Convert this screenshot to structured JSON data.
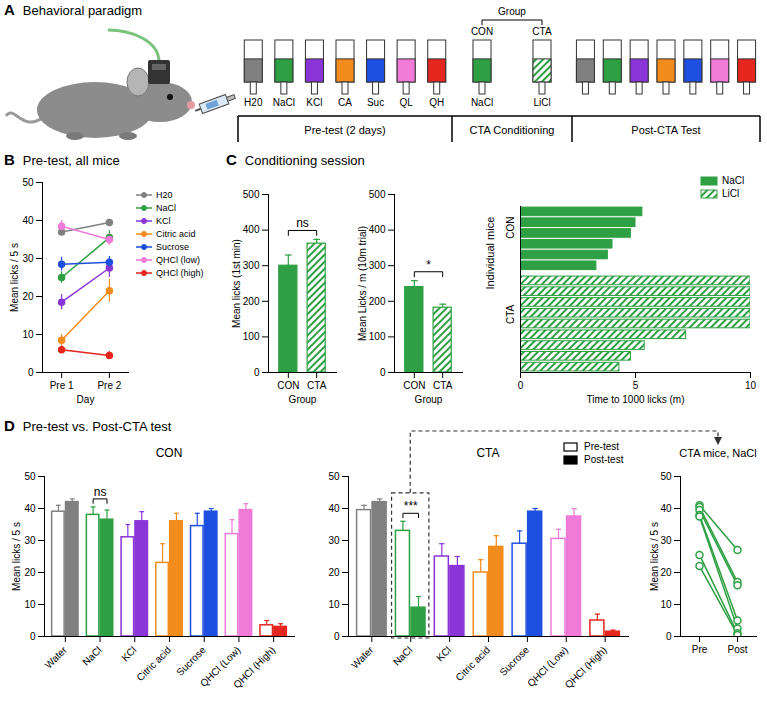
{
  "diagram": {
    "panel_label": "A",
    "title": "Behavioral paradigm",
    "group_label": "Group",
    "phases": [
      {
        "label": "Pre-test (2 days)",
        "tubes": [
          {
            "label": "H20",
            "color": "#808080"
          },
          {
            "label": "NaCl",
            "color": "#2ea043"
          },
          {
            "label": "KCl",
            "color": "#8a35d8"
          },
          {
            "label": "CA",
            "color": "#f28c1c"
          },
          {
            "label": "Suc",
            "color": "#1f4fe0"
          },
          {
            "label": "QL",
            "color": "#f07ad8"
          },
          {
            "label": "QH",
            "color": "#e5261f"
          }
        ]
      },
      {
        "label": "CTA Conditioning",
        "tubes": [
          {
            "label": "NaCl",
            "group": "CON",
            "color": "#2ea043"
          },
          {
            "label": "LiCl",
            "group": "CTA",
            "color": "#2ea043"
          }
        ]
      },
      {
        "label": "Post-CTA Test",
        "tubes": [
          {
            "color": "#808080"
          },
          {
            "color": "#2ea043"
          },
          {
            "color": "#8a35d8"
          },
          {
            "color": "#f28c1c"
          },
          {
            "color": "#1f4fe0"
          },
          {
            "color": "#f07ad8"
          },
          {
            "color": "#e5261f"
          }
        ]
      }
    ]
  },
  "chart_data": [
    {
      "type": "line",
      "panel_label": "B",
      "panel_title": "Pre-test, all mice",
      "categories": [
        "Pre 1",
        "Pre 2"
      ],
      "xlabel": "Day",
      "ylabel": "Mean licks / 5 s",
      "ylim": [
        0,
        50
      ],
      "yticks": [
        0,
        10,
        20,
        30,
        40,
        50
      ],
      "legend": "right",
      "marker": "circle",
      "series": [
        {
          "name": "H20",
          "color": "#808080",
          "values": [
            37,
            39.5
          ],
          "errors": [
            1,
            0.8
          ]
        },
        {
          "name": "NaCl",
          "color": "#2ea043",
          "values": [
            25,
            35.5
          ],
          "errors": [
            1.5,
            1.8
          ]
        },
        {
          "name": "KCl",
          "color": "#8a35d8",
          "values": [
            18.5,
            27.5
          ],
          "errors": [
            2,
            2.5
          ]
        },
        {
          "name": "Citric acid",
          "color": "#f28c1c",
          "values": [
            8.5,
            21.5
          ],
          "errors": [
            1.5,
            3
          ]
        },
        {
          "name": "Sucrose",
          "color": "#1f4fe0",
          "values": [
            28.5,
            29
          ],
          "errors": [
            1.8,
            1.5
          ]
        },
        {
          "name": "QHCl (low)",
          "color": "#f07ad8",
          "values": [
            38.5,
            35
          ],
          "errors": [
            1.5,
            1.5
          ]
        },
        {
          "name": "QHCl (high)",
          "color": "#e5261f",
          "values": [
            6,
            4.5
          ],
          "errors": [
            1,
            1
          ]
        }
      ]
    },
    {
      "type": "bar",
      "panel_label": "C",
      "panel_title": "Conditioning session",
      "categories": [
        "CON",
        "CTA"
      ],
      "values": [
        300,
        362
      ],
      "errors": [
        30,
        12
      ],
      "colors": [
        "#2ea043",
        "#2ea043"
      ],
      "xlabel": "Group",
      "ylabel": "Mean licks (1st min)",
      "ylim": [
        0,
        500
      ],
      "yticks": [
        0,
        100,
        200,
        300,
        400,
        500
      ],
      "annotations": [
        {
          "between": [
            "CON",
            "CTA"
          ],
          "text": "ns"
        }
      ]
    },
    {
      "type": "bar",
      "categories": [
        "CON",
        "CTA"
      ],
      "values": [
        240,
        182
      ],
      "errors": [
        18,
        10
      ],
      "colors": [
        "#2ea043",
        "#2ea043"
      ],
      "xlabel": "Group",
      "ylabel": "Mean Licks / m (10m trial)",
      "ylim": [
        0,
        500
      ],
      "yticks": [
        0,
        100,
        200,
        300,
        400,
        500
      ],
      "annotations": [
        {
          "between": [
            "CON",
            "CTA"
          ],
          "text": "*"
        }
      ]
    },
    {
      "type": "bar",
      "orientation": "horizontal",
      "tick_labels": "x",
      "ylabel": "Individual mice",
      "group_labels": [
        "CON",
        "CTA"
      ],
      "xlabel": "Time to 1000 licks (m)",
      "xlim": [
        0,
        10
      ],
      "xticks": [
        0,
        5,
        10
      ],
      "legend": "top-right",
      "series": [
        {
          "name": "NaCl",
          "color": "#2ea043",
          "values": [
            5.3,
            5.0,
            4.8,
            4.0,
            3.8,
            3.3
          ]
        },
        {
          "name": "LiCl",
          "color": "#2ea043",
          "values": [
            10,
            10,
            10,
            10,
            10,
            7.2,
            5.4,
            4.8,
            4.3
          ]
        }
      ]
    },
    {
      "type": "bar",
      "panel_label": "D",
      "panel_title": "Pre-test vs. Post-CTA test",
      "title": "CON",
      "categories": [
        "Water",
        "NaCl",
        "KCl",
        "Citric acid",
        "Sucrose",
        "QHCl (Low)",
        "QHCl (High)"
      ],
      "colors": [
        "#808080",
        "#2ea043",
        "#8a35d8",
        "#f28c1c",
        "#1f4fe0",
        "#f07ad8",
        "#e5261f"
      ],
      "ylabel": "Mean licks / 5 s",
      "ylim": [
        0,
        50
      ],
      "yticks": [
        0,
        10,
        20,
        30,
        40,
        50
      ],
      "series": [
        {
          "name": "Pre-test",
          "values": [
            39,
            38,
            31,
            23,
            34.5,
            32,
            3.5
          ],
          "errors": [
            2,
            2.5,
            4,
            6,
            4,
            4.5,
            1.5
          ]
        },
        {
          "name": "Post-test",
          "values": [
            42,
            36.5,
            36,
            36,
            39,
            39.5,
            3
          ],
          "errors": [
            1,
            3,
            3,
            2.5,
            1,
            2,
            1
          ]
        }
      ],
      "annotations": [
        {
          "category": "NaCl",
          "text": "ns"
        }
      ]
    },
    {
      "type": "bar",
      "title": "CTA",
      "categories": [
        "Water",
        "NaCl",
        "KCl",
        "Citric acid",
        "Sucrose",
        "QHCl (Low)",
        "QHCl (High)"
      ],
      "colors": [
        "#808080",
        "#2ea043",
        "#8a35d8",
        "#f28c1c",
        "#1f4fe0",
        "#f07ad8",
        "#e5261f"
      ],
      "ylim": [
        0,
        50
      ],
      "yticks": [
        0,
        10,
        20,
        30,
        40,
        50
      ],
      "legend": "top-right",
      "series": [
        {
          "name": "Pre-test",
          "values": [
            39.5,
            33,
            25,
            20,
            29,
            30.5,
            5
          ],
          "errors": [
            1.5,
            3,
            4,
            4,
            4,
            3,
            2
          ]
        },
        {
          "name": "Post-test",
          "values": [
            42,
            9,
            22,
            28,
            39,
            37.5,
            1.5
          ],
          "errors": [
            1,
            3.5,
            3,
            3.5,
            1,
            2.5,
            0.5
          ]
        }
      ],
      "annotations": [
        {
          "category": "NaCl",
          "text": "***"
        }
      ]
    },
    {
      "type": "line",
      "title": "CTA mice, NaCl",
      "categories": [
        "Pre",
        "Post"
      ],
      "color": "#2ea043",
      "marker": "circle-open",
      "ylabel": "Mean licks / 5 s",
      "ylim": [
        0,
        50
      ],
      "yticks": [
        0,
        10,
        20,
        30,
        40,
        50
      ],
      "series": [
        {
          "values": [
            41,
            27
          ]
        },
        {
          "values": [
            40.5,
            17
          ]
        },
        {
          "values": [
            39.5,
            16
          ]
        },
        {
          "values": [
            38,
            5
          ]
        },
        {
          "values": [
            37.5,
            2.5
          ]
        },
        {
          "values": [
            25.5,
            1
          ]
        },
        {
          "values": [
            22,
            0.5
          ]
        }
      ]
    }
  ]
}
